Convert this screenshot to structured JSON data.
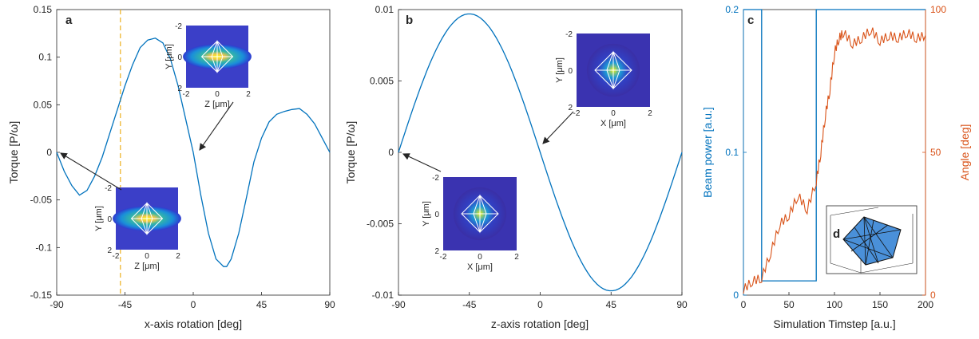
{
  "colors": {
    "blue": "#0072BD",
    "orange": "#D95319",
    "dash": "#EDB120",
    "axis": "#262626"
  },
  "chart_data": [
    {
      "panel": "a",
      "type": "line",
      "xlabel": "x-axis rotation [deg]",
      "ylabel": "Torque [P/ω]",
      "xlim": [
        -90,
        90
      ],
      "ylim": [
        -0.15,
        0.15
      ],
      "xticks": [
        "-90",
        "-45",
        "0",
        "45",
        "90"
      ],
      "yticks": [
        "-0.15",
        "-0.1",
        "-0.05",
        "0",
        "0.05",
        "0.1",
        "0.15"
      ],
      "grid": false,
      "vline_x": -48,
      "series": [
        {
          "color": "#0072BD",
          "x": [
            -90,
            -85,
            -80,
            -75,
            -70,
            -65,
            -60,
            -55,
            -50,
            -45,
            -40,
            -35,
            -30,
            -25,
            -20,
            -15,
            -10,
            -5,
            0,
            5,
            10,
            15,
            20,
            22,
            25,
            30,
            35,
            40,
            45,
            50,
            55,
            60,
            65,
            70,
            75,
            80,
            85,
            90
          ],
          "y": [
            0,
            -0.02,
            -0.035,
            -0.045,
            -0.04,
            -0.025,
            -0.005,
            0.02,
            0.045,
            0.07,
            0.092,
            0.11,
            0.118,
            0.12,
            0.115,
            0.098,
            0.07,
            0.035,
            0,
            -0.045,
            -0.085,
            -0.112,
            -0.12,
            -0.12,
            -0.112,
            -0.085,
            -0.048,
            -0.01,
            0.015,
            0.032,
            0.04,
            0.043,
            0.045,
            0.046,
            0.04,
            0.03,
            0.015,
            0
          ]
        }
      ],
      "insets": [
        {
          "xlabel": "Z [μm]",
          "ylabel": "Y [μm]",
          "xticks": [
            "-2",
            "0",
            "2"
          ],
          "yticks": [
            "-2",
            "0",
            "2"
          ],
          "beam": "elongated"
        },
        {
          "xlabel": "Z [μm]",
          "ylabel": "Y [μm]",
          "xticks": [
            "-2",
            "0",
            "2"
          ],
          "yticks": [
            "-2",
            "0",
            "2"
          ],
          "beam": "elongated"
        }
      ]
    },
    {
      "panel": "b",
      "type": "line",
      "xlabel": "z-axis rotation [deg]",
      "ylabel": "Torque [P/ω]",
      "xlim": [
        -90,
        90
      ],
      "ylim": [
        -0.01,
        0.01
      ],
      "xticks": [
        "-90",
        "-45",
        "0",
        "45",
        "90"
      ],
      "yticks": [
        "-0.01",
        "-0.005",
        "0",
        "0.005",
        "0.01"
      ],
      "grid": false,
      "series": [
        {
          "color": "#0072BD",
          "function": "-0.0097*sin(2x)"
        }
      ],
      "insets": [
        {
          "xlabel": "X [μm]",
          "ylabel": "Y [μm]",
          "xticks": [
            "-2",
            "0",
            "2"
          ],
          "yticks": [
            "-2",
            "0",
            "2"
          ],
          "beam": "round"
        },
        {
          "xlabel": "X [μm]",
          "ylabel": "Y [μm]",
          "xticks": [
            "-2",
            "0",
            "2"
          ],
          "yticks": [
            "-2",
            "0",
            "2"
          ],
          "beam": "round"
        }
      ]
    },
    {
      "panel": "c",
      "type": "line",
      "xlabel": "Simulation Timstep [a.u.]",
      "ylabel_left": "Beam power [a.u.]",
      "ylabel_right": "Angle [deg]",
      "xlim": [
        0,
        200
      ],
      "ylim_left": [
        0,
        0.2
      ],
      "ylim_right": [
        0,
        100
      ],
      "xticks": [
        "0",
        "50",
        "100",
        "150",
        "200"
      ],
      "yticks_left": [
        "0",
        "0.1",
        "0.2"
      ],
      "yticks_right": [
        "0",
        "50",
        "100"
      ],
      "grid": false,
      "series": [
        {
          "axis": "left",
          "color": "#0072BD",
          "x": [
            0,
            20,
            20,
            80,
            80,
            200
          ],
          "y": [
            0.2,
            0.2,
            0.01,
            0.01,
            0.2,
            0.2
          ]
        },
        {
          "axis": "right",
          "color": "#D95319",
          "x": [
            0,
            10,
            20,
            30,
            40,
            50,
            60,
            70,
            80,
            85,
            90,
            95,
            100,
            105,
            110,
            120,
            130,
            140,
            150,
            160,
            170,
            180,
            190,
            200
          ],
          "y": [
            2,
            5,
            6,
            15,
            25,
            28,
            35,
            30,
            40,
            50,
            63,
            72,
            85,
            90,
            92,
            88,
            90,
            93,
            89,
            91,
            90,
            92,
            90,
            91
          ]
        }
      ],
      "inset_label": "d"
    }
  ]
}
